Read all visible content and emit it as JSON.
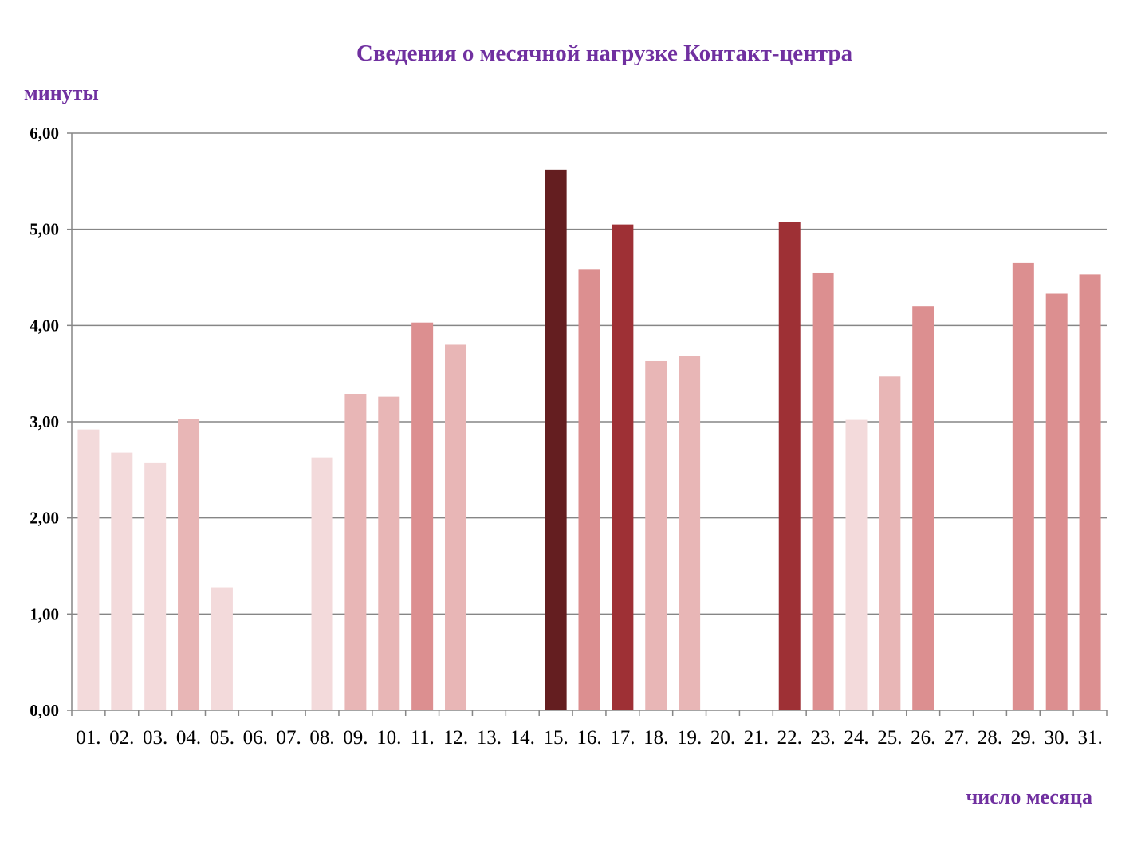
{
  "chart_data": {
    "type": "bar",
    "title": "Сведения о месячной нагрузке Контакт-центра",
    "ylabel": "минуты",
    "xlabel": "число месяца",
    "categories": [
      "01.",
      "02.",
      "03.",
      "04.",
      "05.",
      "06.",
      "07.",
      "08.",
      "09.",
      "10.",
      "11.",
      "12.",
      "13.",
      "14.",
      "15.",
      "16.",
      "17.",
      "18.",
      "19.",
      "20.",
      "21.",
      "22.",
      "23.",
      "24.",
      "25.",
      "26.",
      "27.",
      "28.",
      "29.",
      "30.",
      "31."
    ],
    "values": [
      2.92,
      2.68,
      2.57,
      3.03,
      1.28,
      0,
      0,
      2.63,
      3.29,
      3.26,
      4.03,
      3.8,
      0,
      0,
      5.62,
      4.58,
      5.05,
      3.63,
      3.68,
      0,
      0,
      5.08,
      4.55,
      3.02,
      3.47,
      4.2,
      0,
      0,
      4.65,
      4.33,
      4.53
    ],
    "bar_colors": [
      "#f3dadb",
      "#f3dadb",
      "#f3dadb",
      "#e8b6b6",
      "#f3dadb",
      "#f3dadb",
      "#f3dadb",
      "#f3dadb",
      "#e8b6b6",
      "#e8b6b6",
      "#dc8f90",
      "#e8b6b6",
      "#f3dadb",
      "#f3dadb",
      "#641e20",
      "#dc8f90",
      "#9e3035",
      "#e8b6b6",
      "#e8b6b6",
      "#f3dadb",
      "#f3dadb",
      "#9e3035",
      "#dc8f90",
      "#f3dadb",
      "#e8b6b6",
      "#dc8f90",
      "#f3dadb",
      "#f3dadb",
      "#dc8f90",
      "#dc8f90",
      "#dc8f90"
    ],
    "ylim": [
      0,
      6
    ],
    "yticks": [
      "0,00",
      "1,00",
      "2,00",
      "3,00",
      "4,00",
      "5,00",
      "6,00"
    ],
    "grid": true,
    "legend": "none"
  },
  "colors": {
    "title": "#7030a0",
    "axis_title": "#7030a0",
    "gridline": "#868686",
    "axis": "#868686"
  }
}
